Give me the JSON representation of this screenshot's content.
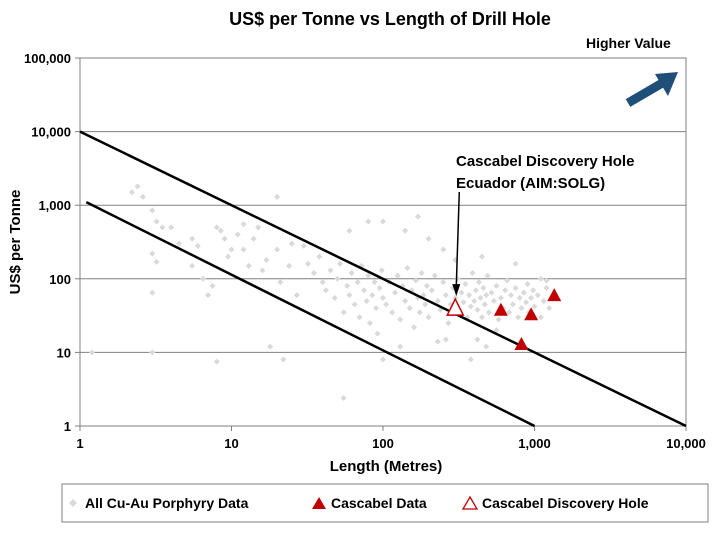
{
  "chart_data": {
    "type": "scatter",
    "title": "US$ per Tonne vs Length of Drill Hole",
    "xlabel": "Length (Metres)",
    "ylabel": "US$ per Tonne",
    "x_scale": "log",
    "y_scale": "log",
    "xlim": [
      1,
      10000
    ],
    "ylim": [
      1,
      100000
    ],
    "x_ticks": [
      1,
      10,
      100,
      1000,
      10000
    ],
    "x_tick_labels": [
      "1",
      "10",
      "100",
      "1,000",
      "10,000"
    ],
    "y_ticks": [
      1,
      10,
      100,
      1000,
      10000,
      100000
    ],
    "y_tick_labels": [
      "1",
      "10",
      "100",
      "1,000",
      "10,000",
      "100,000"
    ],
    "grid": "horizontal",
    "legend_position": "bottom",
    "colors": {
      "all_data": "#d9d9d9",
      "cascabel": "#c00000",
      "lines": "#000000",
      "arrow": "#1f4e79"
    },
    "series": [
      {
        "name": "All Cu-Au Porphyry Data",
        "marker": "diamond",
        "points": [
          [
            2.2,
            1500
          ],
          [
            2.4,
            1800
          ],
          [
            2.6,
            1300
          ],
          [
            3.0,
            850
          ],
          [
            3.2,
            600
          ],
          [
            3.5,
            500
          ],
          [
            3.0,
            220
          ],
          [
            3.2,
            170
          ],
          [
            3.0,
            65
          ],
          [
            3.0,
            10
          ],
          [
            4.0,
            500
          ],
          [
            4.5,
            300
          ],
          [
            5.5,
            150
          ],
          [
            5.5,
            350
          ],
          [
            6.0,
            280
          ],
          [
            6.5,
            100
          ],
          [
            7.0,
            60
          ],
          [
            7.5,
            80
          ],
          [
            8.0,
            500
          ],
          [
            8.5,
            450
          ],
          [
            9.0,
            350
          ],
          [
            9.5,
            200
          ],
          [
            10,
            250
          ],
          [
            11,
            400
          ],
          [
            12,
            550
          ],
          [
            12,
            250
          ],
          [
            13,
            150
          ],
          [
            14,
            350
          ],
          [
            15,
            500
          ],
          [
            16,
            130
          ],
          [
            17,
            180
          ],
          [
            18,
            12
          ],
          [
            20,
            1300
          ],
          [
            20,
            250
          ],
          [
            21,
            90
          ],
          [
            22,
            8
          ],
          [
            24,
            150
          ],
          [
            25,
            300
          ],
          [
            27,
            60
          ],
          [
            30,
            280
          ],
          [
            32,
            160
          ],
          [
            35,
            120
          ],
          [
            38,
            200
          ],
          [
            40,
            90
          ],
          [
            42,
            70
          ],
          [
            45,
            130
          ],
          [
            48,
            55
          ],
          [
            50,
            100
          ],
          [
            52,
            160
          ],
          [
            55,
            35
          ],
          [
            58,
            80
          ],
          [
            60,
            60
          ],
          [
            62,
            120
          ],
          [
            65,
            45
          ],
          [
            68,
            90
          ],
          [
            70,
            30
          ],
          [
            72,
            150
          ],
          [
            75,
            70
          ],
          [
            78,
            50
          ],
          [
            80,
            110
          ],
          [
            82,
            25
          ],
          [
            85,
            60
          ],
          [
            88,
            90
          ],
          [
            90,
            40
          ],
          [
            92,
            18
          ],
          [
            95,
            75
          ],
          [
            98,
            130
          ],
          [
            100,
            55
          ],
          [
            100,
            8
          ],
          [
            105,
            45
          ],
          [
            110,
            90
          ],
          [
            115,
            35
          ],
          [
            120,
            65
          ],
          [
            125,
            110
          ],
          [
            130,
            28
          ],
          [
            135,
            80
          ],
          [
            140,
            50
          ],
          [
            145,
            140
          ],
          [
            150,
            40
          ],
          [
            155,
            70
          ],
          [
            160,
            22
          ],
          [
            165,
            95
          ],
          [
            170,
            55
          ],
          [
            175,
            35
          ],
          [
            180,
            120
          ],
          [
            185,
            60
          ],
          [
            190,
            45
          ],
          [
            195,
            80
          ],
          [
            200,
            30
          ],
          [
            210,
            70
          ],
          [
            220,
            110
          ],
          [
            230,
            50
          ],
          [
            240,
            38
          ],
          [
            250,
            90
          ],
          [
            260,
            60
          ],
          [
            270,
            25
          ],
          [
            280,
            45
          ],
          [
            290,
            75
          ],
          [
            300,
            55
          ],
          [
            310,
            100
          ],
          [
            320,
            35
          ],
          [
            330,
            65
          ],
          [
            340,
            48
          ],
          [
            350,
            85
          ],
          [
            360,
            30
          ],
          [
            370,
            60
          ],
          [
            380,
            42
          ],
          [
            390,
            120
          ],
          [
            400,
            50
          ],
          [
            410,
            70
          ],
          [
            420,
            38
          ],
          [
            430,
            90
          ],
          [
            440,
            55
          ],
          [
            450,
            30
          ],
          [
            460,
            75
          ],
          [
            470,
            45
          ],
          [
            480,
            60
          ],
          [
            490,
            110
          ],
          [
            500,
            35
          ],
          [
            520,
            65
          ],
          [
            540,
            50
          ],
          [
            560,
            80
          ],
          [
            580,
            28
          ],
          [
            600,
            55
          ],
          [
            620,
            40
          ],
          [
            640,
            70
          ],
          [
            660,
            95
          ],
          [
            680,
            35
          ],
          [
            700,
            60
          ],
          [
            720,
            45
          ],
          [
            750,
            75
          ],
          [
            780,
            30
          ],
          [
            800,
            55
          ],
          [
            820,
            40
          ],
          [
            850,
            65
          ],
          [
            880,
            48
          ],
          [
            900,
            85
          ],
          [
            920,
            35
          ],
          [
            950,
            55
          ],
          [
            980,
            70
          ],
          [
            1000,
            42
          ],
          [
            1050,
            60
          ],
          [
            1100,
            30
          ],
          [
            1150,
            50
          ],
          [
            1200,
            75
          ],
          [
            1250,
            40
          ],
          [
            1300,
            55
          ],
          [
            1100,
            100
          ],
          [
            1200,
            95
          ],
          [
            60,
            450
          ],
          [
            80,
            600
          ],
          [
            140,
            450
          ],
          [
            200,
            350
          ],
          [
            250,
            250
          ],
          [
            100,
            600
          ],
          [
            170,
            700
          ],
          [
            300,
            180
          ],
          [
            450,
            200
          ],
          [
            750,
            160
          ],
          [
            420,
            15
          ],
          [
            380,
            8
          ],
          [
            480,
            12
          ],
          [
            560,
            20
          ],
          [
            260,
            15
          ],
          [
            55,
            2.4
          ],
          [
            1.2,
            10
          ],
          [
            8,
            7.5
          ],
          [
            15,
            500
          ],
          [
            230,
            14
          ],
          [
            130,
            12
          ]
        ]
      },
      {
        "name": "Cascabel Data",
        "marker": "triangle-filled",
        "points": [
          [
            600,
            38
          ],
          [
            950,
            33
          ],
          [
            1350,
            60
          ],
          [
            820,
            13
          ]
        ]
      },
      {
        "name": "Cascabel Discovery Hole",
        "marker": "triangle-open",
        "points": [
          [
            300,
            40
          ]
        ]
      }
    ],
    "lines": [
      {
        "from": [
          1,
          10000
        ],
        "to": [
          10000,
          1
        ]
      },
      {
        "from": [
          1.1,
          1100
        ],
        "to": [
          1000,
          1
        ]
      }
    ],
    "annotations": [
      {
        "text_lines": [
          "Cascabel Discovery Hole",
          "Ecuador (AIM:SOLG)"
        ],
        "points_to": [
          300,
          40
        ]
      }
    ],
    "corner_label": "Higher Value"
  }
}
